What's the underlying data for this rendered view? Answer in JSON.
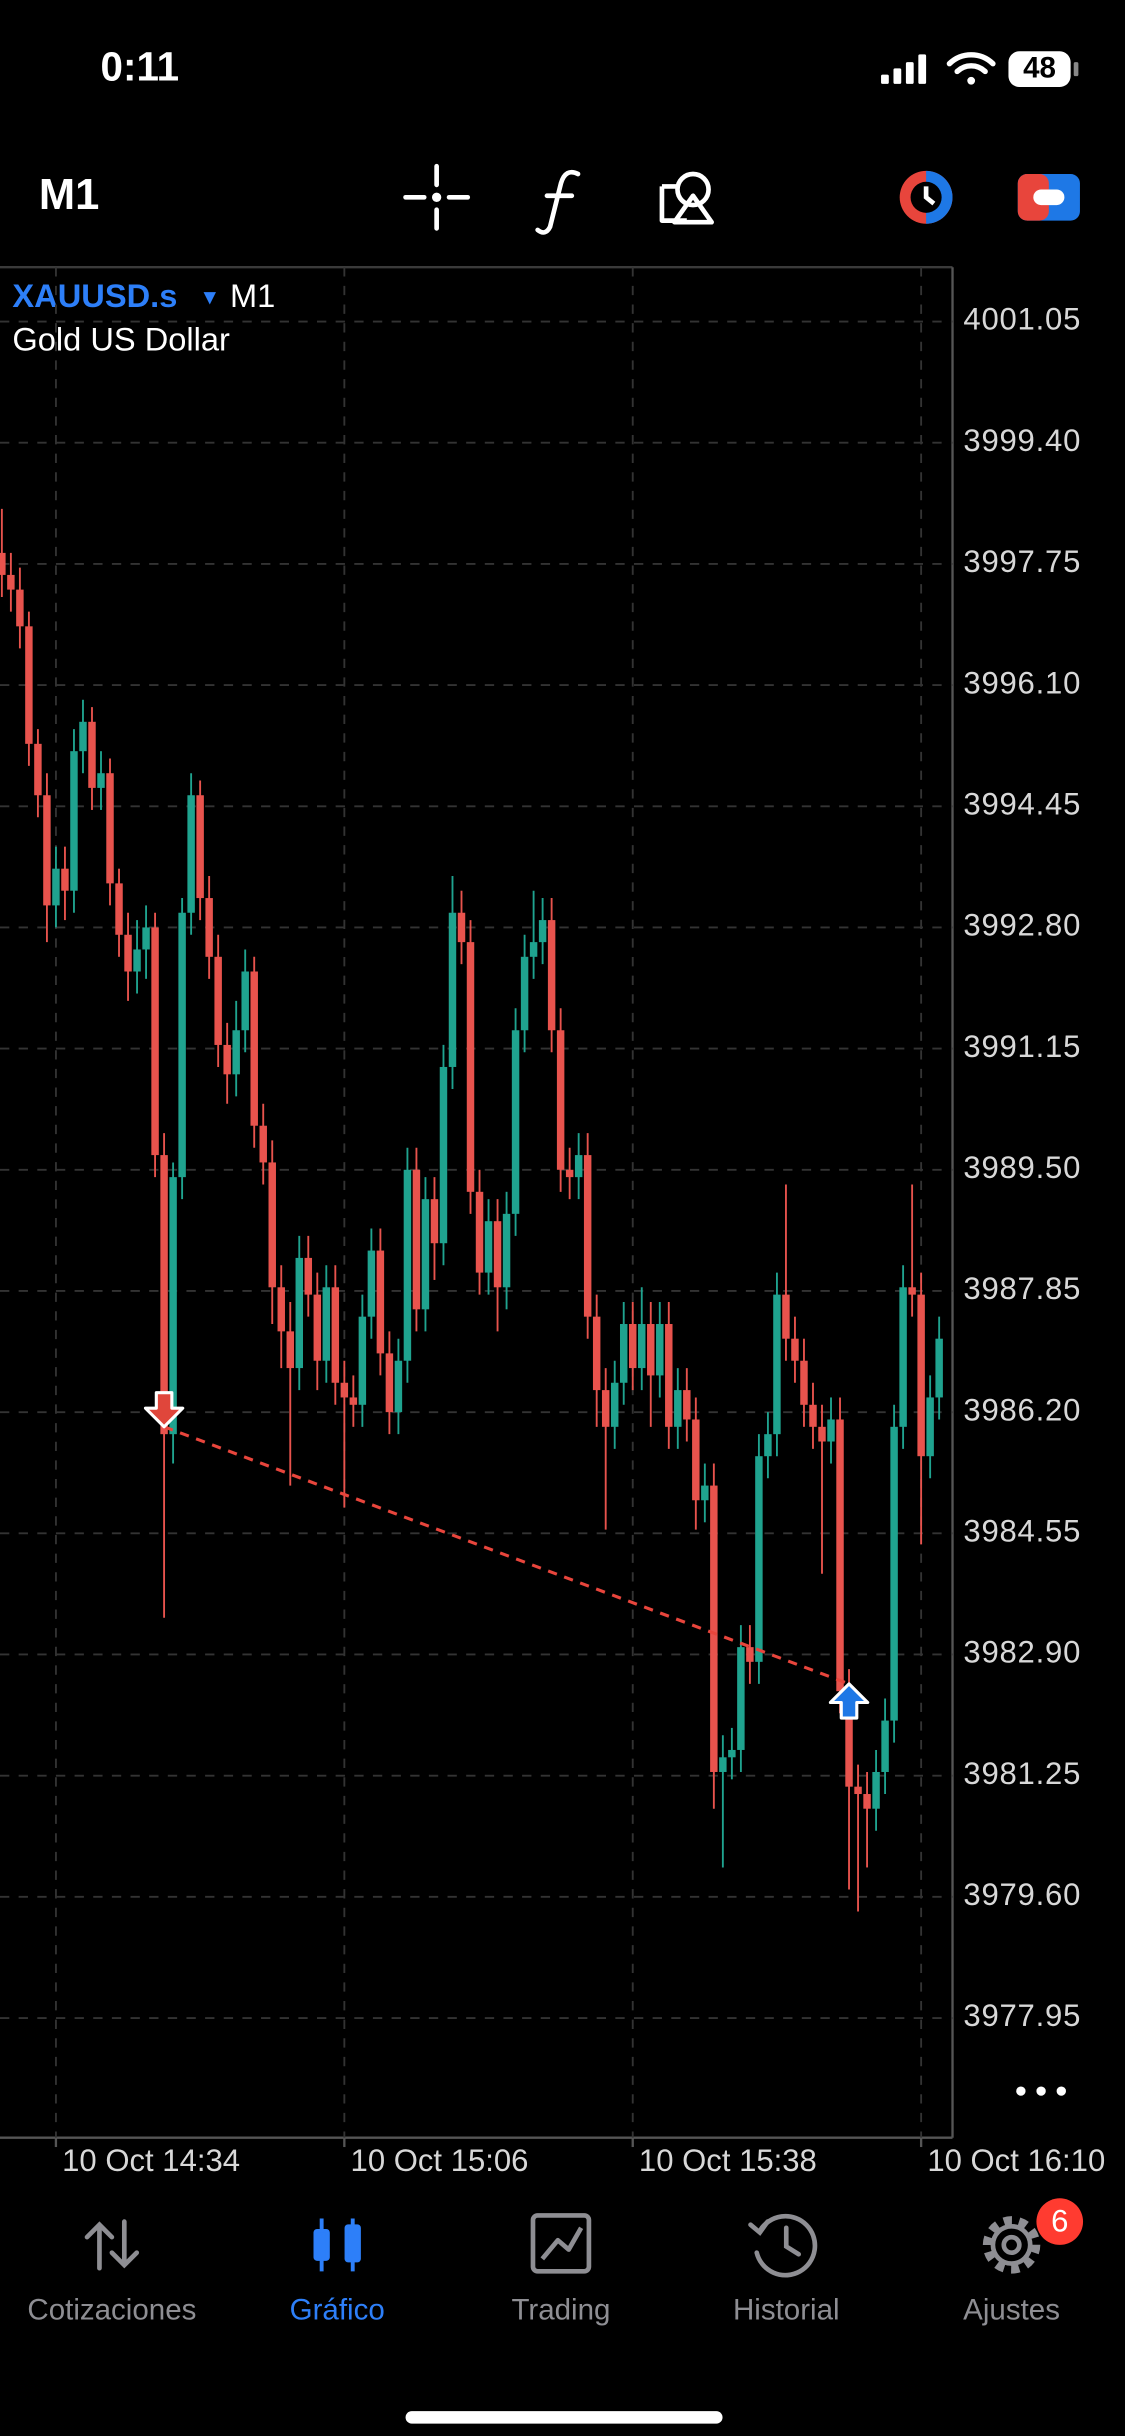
{
  "status_bar": {
    "time": "0:11",
    "battery": "48"
  },
  "toolbar": {
    "timeframe": "M1"
  },
  "chart_data": {
    "type": "candlestick",
    "symbol": "XAUUSD.s",
    "timeframe": "M1",
    "description": "Gold US Dollar",
    "up_color": "#1fa38f",
    "down_color": "#e8534d",
    "grid": true,
    "ylim": [
      3976.32,
      4001.79
    ],
    "yticks": [
      4001.05,
      {
        "value": 3999.4,
        "label": "3999.40"
      },
      3997.75,
      {
        "value": 3996.1,
        "label": "3996.10"
      },
      3994.45,
      {
        "value": 3992.8,
        "label": "3992.80"
      },
      3991.15,
      {
        "value": 3989.5,
        "label": "3989.50"
      },
      3987.85,
      {
        "value": 3986.2,
        "label": "3986.20"
      },
      3984.55,
      {
        "value": 3982.9,
        "label": "3982.90"
      },
      3981.25,
      {
        "value": 3979.6,
        "label": "3979.60"
      },
      3977.95
    ],
    "categories": [
      null,
      null,
      null,
      null,
      null,
      null,
      "10 Oct 14:34",
      null,
      null,
      null,
      null,
      null,
      null,
      null,
      null,
      null,
      null,
      null,
      null,
      null,
      null,
      null,
      null,
      null,
      null,
      null,
      null,
      null,
      null,
      null,
      null,
      null,
      null,
      null,
      null,
      null,
      null,
      null,
      "10 Oct 15:06",
      null,
      null,
      null,
      null,
      null,
      null,
      null,
      null,
      null,
      null,
      null,
      null,
      null,
      null,
      null,
      null,
      null,
      null,
      null,
      null,
      null,
      null,
      null,
      null,
      null,
      null,
      null,
      null,
      null,
      null,
      null,
      "10 Oct 15:38",
      null,
      null,
      null,
      null,
      null,
      null,
      null,
      null,
      null,
      null,
      null,
      null,
      null,
      null,
      null,
      null,
      null,
      null,
      null,
      null,
      null,
      null,
      null,
      null,
      null,
      null,
      null,
      null,
      null,
      null,
      null,
      "10 Oct 16:10",
      null,
      null
    ],
    "open": [
      3997.9,
      3997.6,
      3997.4,
      3996.9,
      3995.3,
      3994.6,
      3993.1,
      3993.6,
      3993.3,
      3995.2,
      3995.6,
      3994.7,
      3994.9,
      3993.4,
      3992.7,
      3992.2,
      3992.5,
      3992.8,
      3989.7,
      3985.9,
      3989.4,
      3993.0,
      3994.6,
      3993.2,
      3992.4,
      3991.2,
      3990.8,
      3991.4,
      3992.2,
      3990.1,
      3989.6,
      3987.9,
      3987.3,
      3986.8,
      3988.3,
      3987.8,
      3986.9,
      3987.9,
      3986.6,
      3986.4,
      3986.3,
      3987.5,
      3988.4,
      3987.0,
      3986.2,
      3986.9,
      3989.5,
      3987.6,
      3989.1,
      3988.5,
      3990.9,
      3993.0,
      3992.6,
      3989.2,
      3988.1,
      3988.8,
      3987.9,
      3988.9,
      3991.4,
      3992.4,
      3992.6,
      3992.9,
      3991.4,
      3989.5,
      3989.4,
      3989.7,
      3987.5,
      3986.5,
      3986.0,
      3986.6,
      3987.4,
      3986.8,
      3987.4,
      3986.7,
      3987.4,
      3986.0,
      3986.5,
      3986.1,
      3985.0,
      3985.2,
      3981.3,
      3981.5,
      3981.6,
      3983.0,
      3982.8,
      3985.6,
      3985.9,
      3987.8,
      3987.2,
      3986.9,
      3986.3,
      3986.0,
      3985.8,
      3986.1,
      3982.4,
      3981.1,
      3981.0,
      3980.8,
      3981.3,
      3982.0,
      3986.0,
      3987.9,
      3987.8,
      3985.6,
      3986.4
    ],
    "high": [
      3998.5,
      3997.9,
      3997.7,
      3997.1,
      3995.5,
      3994.9,
      3993.9,
      3993.9,
      3995.5,
      3995.9,
      3995.8,
      3995.2,
      3995.1,
      3993.6,
      3993.0,
      3992.9,
      3993.1,
      3993.0,
      3990.0,
      3989.6,
      3993.2,
      3994.9,
      3994.8,
      3993.5,
      3992.7,
      3991.5,
      3991.8,
      3992.5,
      3992.4,
      3990.4,
      3989.9,
      3988.2,
      3987.7,
      3988.6,
      3988.6,
      3988.1,
      3988.2,
      3988.2,
      3986.9,
      3986.7,
      3987.8,
      3988.7,
      3988.7,
      3987.3,
      3987.2,
      3989.8,
      3989.8,
      3989.4,
      3989.4,
      3991.2,
      3993.5,
      3993.3,
      3992.9,
      3989.5,
      3989.1,
      3989.1,
      3989.2,
      3991.7,
      3992.7,
      3993.3,
      3993.2,
      3993.2,
      3991.7,
      3989.8,
      3990.0,
      3990.0,
      3987.8,
      3986.8,
      3986.9,
      3987.7,
      3987.7,
      3987.9,
      3987.7,
      3987.7,
      3987.7,
      3986.8,
      3986.8,
      3986.4,
      3985.5,
      3985.5,
      3981.8,
      3981.9,
      3983.3,
      3983.3,
      3985.9,
      3986.2,
      3988.1,
      3989.3,
      3987.5,
      3987.2,
      3986.6,
      3986.3,
      3986.4,
      3986.4,
      3982.7,
      3981.4,
      3981.3,
      3981.6,
      3982.3,
      3986.3,
      3988.2,
      3989.3,
      3988.1,
      3986.7,
      3987.5
    ],
    "low": [
      3997.3,
      3997.1,
      3996.6,
      3995.0,
      3994.3,
      3992.6,
      3992.8,
      3992.9,
      3993.0,
      3994.9,
      3994.4,
      3994.4,
      3993.1,
      3992.4,
      3991.8,
      3991.9,
      3992.1,
      3989.4,
      3983.4,
      3985.5,
      3989.1,
      3992.7,
      3992.9,
      3992.1,
      3990.9,
      3990.4,
      3990.5,
      3991.1,
      3989.8,
      3989.3,
      3987.4,
      3986.8,
      3985.2,
      3986.5,
      3987.5,
      3986.5,
      3986.6,
      3986.3,
      3984.9,
      3986.0,
      3986.0,
      3987.2,
      3986.7,
      3985.9,
      3985.9,
      3986.6,
      3987.3,
      3987.3,
      3988.0,
      3988.2,
      3990.6,
      3992.3,
      3988.9,
      3987.8,
      3987.8,
      3987.3,
      3987.6,
      3988.6,
      3991.1,
      3992.1,
      3992.3,
      3991.1,
      3989.2,
      3989.1,
      3989.1,
      3987.2,
      3986.0,
      3984.6,
      3985.7,
      3986.3,
      3986.5,
      3986.5,
      3986.0,
      3986.4,
      3985.7,
      3985.7,
      3985.8,
      3984.6,
      3984.7,
      3980.8,
      3980.0,
      3981.2,
      3981.3,
      3982.5,
      3982.5,
      3985.3,
      3985.6,
      3986.9,
      3986.6,
      3986.0,
      3985.7,
      3984.0,
      3985.5,
      3982.1,
      3979.7,
      3979.4,
      3980.0,
      3980.5,
      3981.0,
      3981.7,
      3985.7,
      3987.5,
      3984.4,
      3985.3,
      3986.1
    ],
    "close": [
      3997.6,
      3997.4,
      3996.9,
      3995.3,
      3994.6,
      3993.1,
      3993.6,
      3993.3,
      3995.2,
      3995.6,
      3994.7,
      3994.9,
      3993.4,
      3992.7,
      3992.2,
      3992.5,
      3992.8,
      3989.7,
      3985.9,
      3989.4,
      3993.0,
      3994.6,
      3993.2,
      3992.4,
      3991.2,
      3990.8,
      3991.4,
      3992.2,
      3990.1,
      3989.6,
      3987.9,
      3987.3,
      3986.8,
      3988.3,
      3987.8,
      3986.9,
      3987.9,
      3986.6,
      3986.4,
      3986.3,
      3987.5,
      3988.4,
      3987.0,
      3986.2,
      3986.9,
      3989.5,
      3987.6,
      3989.1,
      3988.5,
      3990.9,
      3993.0,
      3992.6,
      3989.2,
      3988.1,
      3988.8,
      3987.9,
      3988.9,
      3991.4,
      3992.4,
      3992.6,
      3992.9,
      3991.4,
      3989.5,
      3989.4,
      3989.7,
      3987.5,
      3986.5,
      3986.0,
      3986.6,
      3987.4,
      3986.8,
      3987.4,
      3986.7,
      3987.4,
      3986.0,
      3986.5,
      3986.1,
      3985.0,
      3985.2,
      3981.3,
      3981.5,
      3981.6,
      3983.0,
      3982.8,
      3985.6,
      3985.9,
      3987.8,
      3987.2,
      3986.9,
      3986.3,
      3986.0,
      3985.8,
      3986.1,
      3982.4,
      3981.1,
      3981.0,
      3980.8,
      3981.3,
      3982.0,
      3986.0,
      3987.9,
      3987.8,
      3985.6,
      3986.4,
      3987.2
    ],
    "trade_line_color": "#e8453c",
    "trades": [
      {
        "x": 18,
        "price": 3986.0,
        "direction": "down",
        "color": "#e0463b"
      },
      {
        "x": 94,
        "price": 3982.5,
        "direction": "up",
        "color": "#1e78e6"
      }
    ]
  },
  "tabs": [
    {
      "label": "Cotizaciones"
    },
    {
      "label": "Gráfico",
      "active": true
    },
    {
      "label": "Trading"
    },
    {
      "label": "Historial"
    },
    {
      "label": "Ajustes",
      "badge": "6"
    }
  ]
}
